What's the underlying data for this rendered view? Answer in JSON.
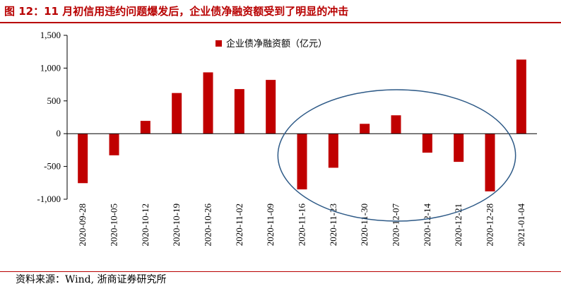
{
  "title": "图 12：11 月初信用违约问题爆发后，企业债净融资额受到了明显的冲击",
  "source": "资料来源：Wind, 浙商证券研究所",
  "colors": {
    "title": "#b80000",
    "bar": "#c00000",
    "ellipse": "#2e5a87",
    "axis": "#000000"
  },
  "chart_data": {
    "type": "bar",
    "title": "",
    "xlabel": "",
    "ylabel": "",
    "categories": [
      "2020-09-28",
      "2020-10-05",
      "2020-10-12",
      "2020-10-19",
      "2020-10-26",
      "2020-11-02",
      "2020-11-09",
      "2020-11-16",
      "2020-11-23",
      "2020-11-30",
      "2020-12-07",
      "2020-12-14",
      "2020-12-21",
      "2020-12-28",
      "2021-01-04"
    ],
    "series": [
      {
        "name": "企业债净融资额（亿元）",
        "values": [
          -755,
          -330,
          195,
          620,
          935,
          680,
          820,
          -850,
          -520,
          150,
          280,
          -290,
          -430,
          -880,
          1130
        ]
      }
    ],
    "ylim": [
      -1000,
      1500
    ],
    "yticks": [
      -1000,
      -500,
      0,
      500,
      1000,
      1500
    ],
    "ytick_labels": [
      "-1,000",
      "-500",
      "0",
      "500",
      "1,000",
      "1,500"
    ],
    "legend": "top-center",
    "annotation": "ellipse highlighting 2020-11-16 to 2020-12-28"
  }
}
